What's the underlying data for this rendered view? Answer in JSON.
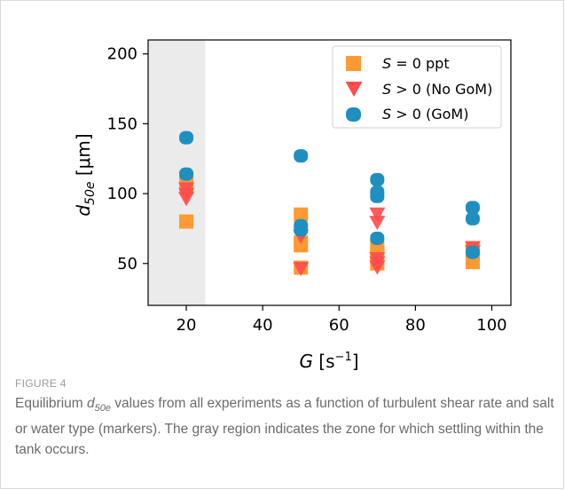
{
  "figure": {
    "label": "FIGURE 4",
    "caption_prefix": "Equilibrium ",
    "caption_symbol": "d",
    "caption_subscript": "50e",
    "caption_suffix": " values from all experiments as a function of turbulent shear rate and salt or water type (markers). The gray region indicates the zone for which settling within the tank occurs."
  },
  "colors": {
    "orange": "#ff9933",
    "red": "#ff4d4d",
    "blue": "#1f8fc0",
    "shade": "#ebebeb"
  },
  "chart_data": {
    "type": "scatter",
    "xlabel_symbol": "G",
    "xlabel_unit": " [s",
    "xlabel_exp": "−1",
    "xlabel_close": "]",
    "ylabel_symbol": "d",
    "ylabel_sub": "50e",
    "ylabel_unit": " [μm]",
    "xlim": [
      10,
      105
    ],
    "ylim": [
      20,
      210
    ],
    "xticks": [
      20,
      40,
      60,
      80,
      100
    ],
    "yticks": [
      50,
      100,
      150,
      200
    ],
    "grid": false,
    "legend_position": "top-right",
    "shaded_region": {
      "x0": 10,
      "x1": 25
    },
    "series": [
      {
        "name_symbol": "S",
        "name_rest": " = 0 ppt",
        "marker": "square",
        "color": "#ff9933",
        "points": [
          [
            20,
            80
          ],
          [
            20,
            105
          ],
          [
            20,
            110
          ],
          [
            50,
            47
          ],
          [
            50,
            63
          ],
          [
            50,
            65
          ],
          [
            50,
            85
          ],
          [
            70,
            50
          ],
          [
            70,
            53
          ],
          [
            70,
            57
          ],
          [
            70,
            62
          ],
          [
            95,
            51
          ],
          [
            95,
            56
          ],
          [
            95,
            60
          ]
        ]
      },
      {
        "name_symbol": "S",
        "name_rest": " > 0 (No GoM)",
        "marker": "triangle-down",
        "color": "#ff4d4d",
        "points": [
          [
            20,
            96
          ],
          [
            20,
            99
          ],
          [
            20,
            103
          ],
          [
            50,
            46
          ],
          [
            50,
            69
          ],
          [
            70,
            47
          ],
          [
            70,
            50
          ],
          [
            70,
            53
          ],
          [
            70,
            79
          ],
          [
            70,
            85
          ],
          [
            95,
            58
          ],
          [
            95,
            61
          ]
        ]
      },
      {
        "name_symbol": "S",
        "name_rest": " > 0 (GoM)",
        "marker": "circle",
        "color": "#1f8fc0",
        "points": [
          [
            20,
            140
          ],
          [
            20,
            114
          ],
          [
            50,
            127
          ],
          [
            50,
            77
          ],
          [
            50,
            74
          ],
          [
            70,
            110
          ],
          [
            70,
            101
          ],
          [
            70,
            98
          ],
          [
            70,
            68
          ],
          [
            95,
            90
          ],
          [
            95,
            82
          ],
          [
            95,
            58
          ]
        ]
      }
    ]
  }
}
